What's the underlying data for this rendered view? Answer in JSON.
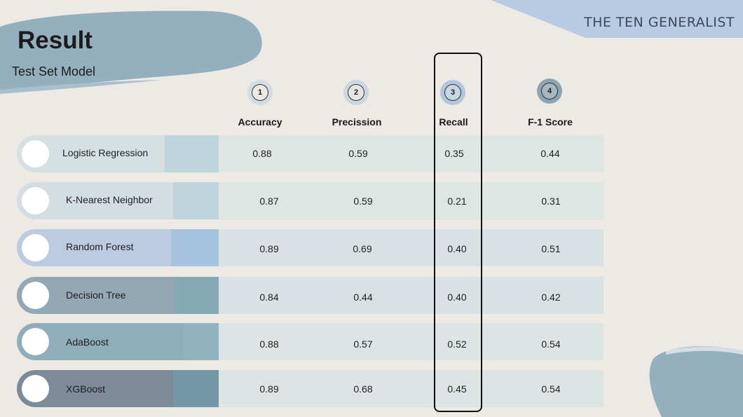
{
  "header": {
    "brand": "THE TEN GENERALIST",
    "title": "Result",
    "subtitle": "Test Set Model"
  },
  "steps": [
    {
      "number": "1",
      "label": "Accuracy"
    },
    {
      "number": "2",
      "label": "Precission"
    },
    {
      "number": "3",
      "label": "Recall"
    },
    {
      "number": "4",
      "label": "F-1 Score"
    }
  ],
  "models": [
    {
      "name": "Logistic Regression",
      "accuracy": "0.88",
      "precision": "0.59",
      "recall": "0.35",
      "f1": "0.44"
    },
    {
      "name": "K-Nearest Neighbor",
      "accuracy": "0.87",
      "precision": "0.59",
      "recall": "0.21",
      "f1": "0.31"
    },
    {
      "name": "Random Forest",
      "accuracy": "0.89",
      "precision": "0.69",
      "recall": "0.40",
      "f1": "0.51"
    },
    {
      "name": "Decision Tree",
      "accuracy": "0.84",
      "precision": "0.44",
      "recall": "0.40",
      "f1": "0.42"
    },
    {
      "name": "AdaBoost",
      "accuracy": "0.88",
      "precision": "0.57",
      "recall": "0.52",
      "f1": "0.54"
    },
    {
      "name": "XGBoost",
      "accuracy": "0.89",
      "precision": "0.68",
      "recall": "0.45",
      "f1": "0.54"
    }
  ],
  "colors": {
    "background": "#ede9e4",
    "accent_blue": "#b9cbe2",
    "brush_blue": "#94afbd",
    "highlight_border": "#111111"
  }
}
